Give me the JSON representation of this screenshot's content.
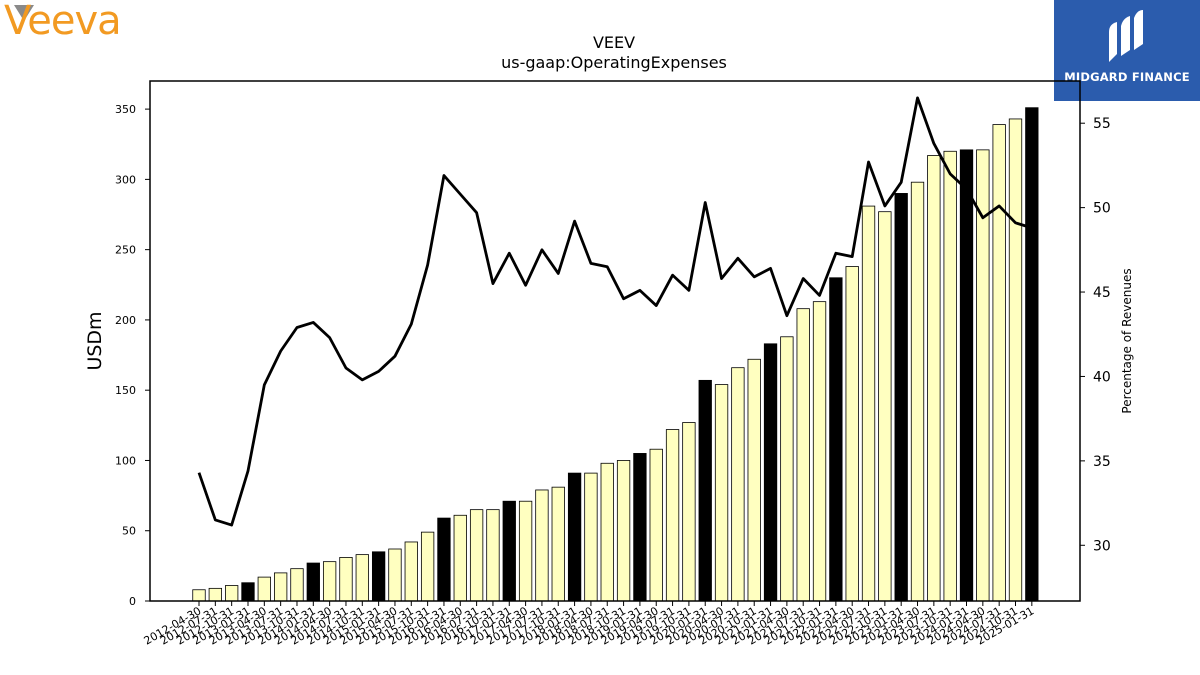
{
  "branding": {
    "left_logo_text": "Veeva",
    "left_logo_color": "#f29a22",
    "right_logo_text": "MIDGARD FINANCE",
    "right_logo_bg": "#2b5cad"
  },
  "chart_data": {
    "type": "bar+line",
    "title": "VEEV",
    "subtitle": "us-gaap:OperatingExpenses",
    "ylabel": "USDm",
    "y2label": "Percentage of Revenues",
    "ylim": [
      0,
      370
    ],
    "y2lim": [
      26.7,
      57.5
    ],
    "yticks": [
      0,
      50,
      100,
      150,
      200,
      250,
      300,
      350
    ],
    "y2ticks": [
      30,
      35,
      40,
      45,
      50,
      55
    ],
    "categories": [
      "2012-04-30",
      "2012-07-31",
      "2012-10-31",
      "2013-01-31",
      "2013-04-30",
      "2013-07-31",
      "2013-10-31",
      "2014-01-31",
      "2014-04-30",
      "2014-07-31",
      "2014-10-31",
      "2015-01-31",
      "2015-04-30",
      "2015-07-31",
      "2015-10-31",
      "2016-01-31",
      "2016-04-30",
      "2016-07-31",
      "2016-10-31",
      "2017-01-31",
      "2017-04-30",
      "2017-07-31",
      "2017-10-31",
      "2018-01-31",
      "2018-04-30",
      "2018-07-31",
      "2018-10-31",
      "2019-01-31",
      "2019-04-30",
      "2019-07-31",
      "2019-10-31",
      "2020-01-31",
      "2020-04-30",
      "2020-07-31",
      "2020-10-31",
      "2021-01-31",
      "2021-04-30",
      "2021-07-31",
      "2021-10-31",
      "2022-01-31",
      "2022-04-30",
      "2022-07-31",
      "2022-10-31",
      "2023-01-31",
      "2023-04-30",
      "2023-07-31",
      "2023-10-31",
      "2024-01-31",
      "2024-04-30",
      "2024-07-31",
      "2024-10-31",
      "2025-01-31"
    ],
    "series": [
      {
        "kind": "bar",
        "values": [
          8,
          9,
          11,
          13,
          17,
          20,
          23,
          27,
          28,
          31,
          33,
          35,
          37,
          42,
          49,
          59,
          61,
          65,
          65,
          71,
          71,
          79,
          81,
          91,
          91,
          98,
          100,
          105,
          108,
          122,
          127,
          157,
          154,
          166,
          172,
          183,
          188,
          208,
          213,
          230,
          238,
          281,
          277,
          290,
          298,
          317,
          320,
          321,
          321,
          339,
          343,
          351
        ],
        "highlight_color": "#000000",
        "base_color": "#ffffc0",
        "highlight_indices": [
          3,
          7,
          11,
          15,
          19,
          23,
          27,
          31,
          35,
          39,
          43,
          47,
          51
        ]
      },
      {
        "kind": "line",
        "values": [
          34.3,
          31.5,
          31.2,
          34.4,
          39.5,
          41.5,
          42.9,
          43.2,
          42.3,
          40.5,
          39.8,
          40.3,
          41.2,
          43.1,
          46.6,
          51.9,
          50.8,
          49.7,
          45.5,
          47.3,
          45.4,
          47.5,
          46.1,
          49.2,
          46.7,
          46.5,
          44.6,
          45.1,
          44.2,
          46.0,
          45.1,
          50.3,
          45.8,
          47.0,
          45.9,
          46.4,
          43.6,
          45.8,
          44.8,
          47.3,
          47.1,
          52.7,
          50.1,
          51.5,
          56.5,
          53.8,
          52.0,
          51.1,
          49.4,
          50.1,
          49.1,
          48.8
        ],
        "color": "#000000"
      }
    ],
    "grid": false,
    "legend": "none"
  }
}
